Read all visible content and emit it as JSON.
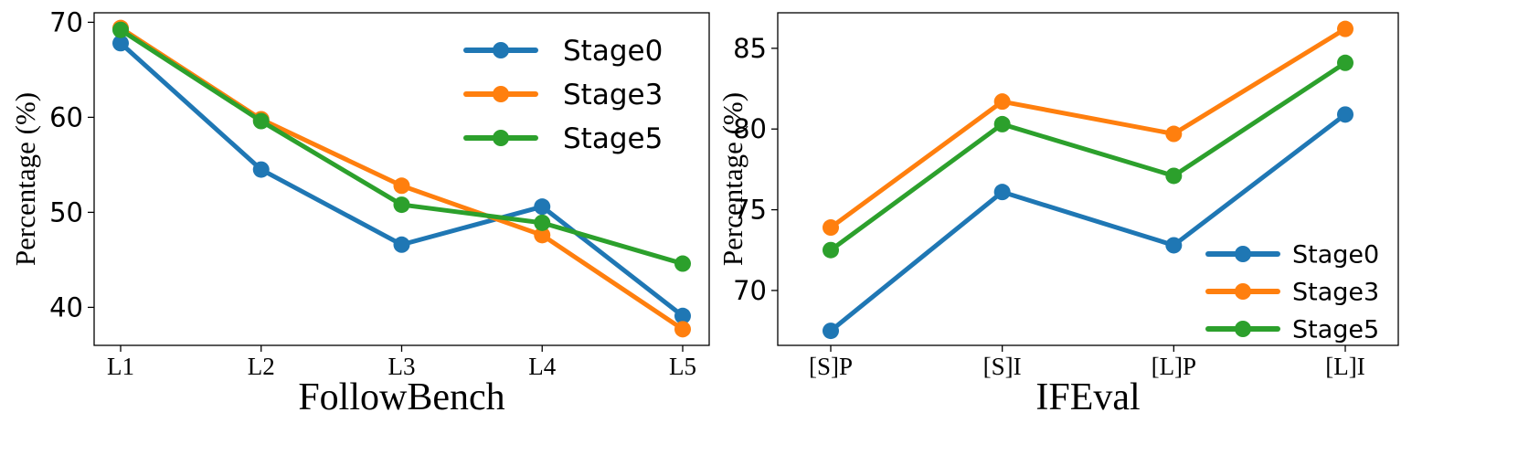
{
  "chart_data": [
    {
      "type": "line",
      "title": "",
      "xlabel": "FollowBench",
      "ylabel": "Percentage (%)",
      "categories": [
        "L1",
        "L2",
        "L3",
        "L4",
        "L5"
      ],
      "ylim": [
        36,
        71
      ],
      "yticks": [
        40,
        50,
        60,
        70
      ],
      "grid": false,
      "legend": "top-right",
      "series": [
        {
          "name": "Stage0",
          "color": "#1f77b4",
          "values": [
            67.8,
            54.5,
            46.6,
            50.6,
            39.1
          ]
        },
        {
          "name": "Stage3",
          "color": "#ff7f0e",
          "values": [
            69.4,
            59.8,
            52.8,
            47.6,
            37.7
          ]
        },
        {
          "name": "Stage5",
          "color": "#2ca02c",
          "values": [
            69.2,
            59.6,
            50.8,
            48.9,
            44.6
          ]
        }
      ]
    },
    {
      "type": "line",
      "title": "",
      "xlabel": "IFEval",
      "ylabel": "Percentage (%)",
      "categories": [
        "[S]P",
        "[S]I",
        "[L]P",
        "[L]I"
      ],
      "ylim": [
        66.6,
        87.2
      ],
      "yticks": [
        70,
        75,
        80,
        85
      ],
      "grid": false,
      "legend": "bottom-right",
      "series": [
        {
          "name": "Stage0",
          "color": "#1f77b4",
          "values": [
            67.5,
            76.1,
            72.8,
            80.9
          ]
        },
        {
          "name": "Stage3",
          "color": "#ff7f0e",
          "values": [
            73.9,
            81.7,
            79.7,
            86.2
          ]
        },
        {
          "name": "Stage5",
          "color": "#2ca02c",
          "values": [
            72.5,
            80.3,
            77.1,
            84.1
          ]
        }
      ]
    }
  ]
}
